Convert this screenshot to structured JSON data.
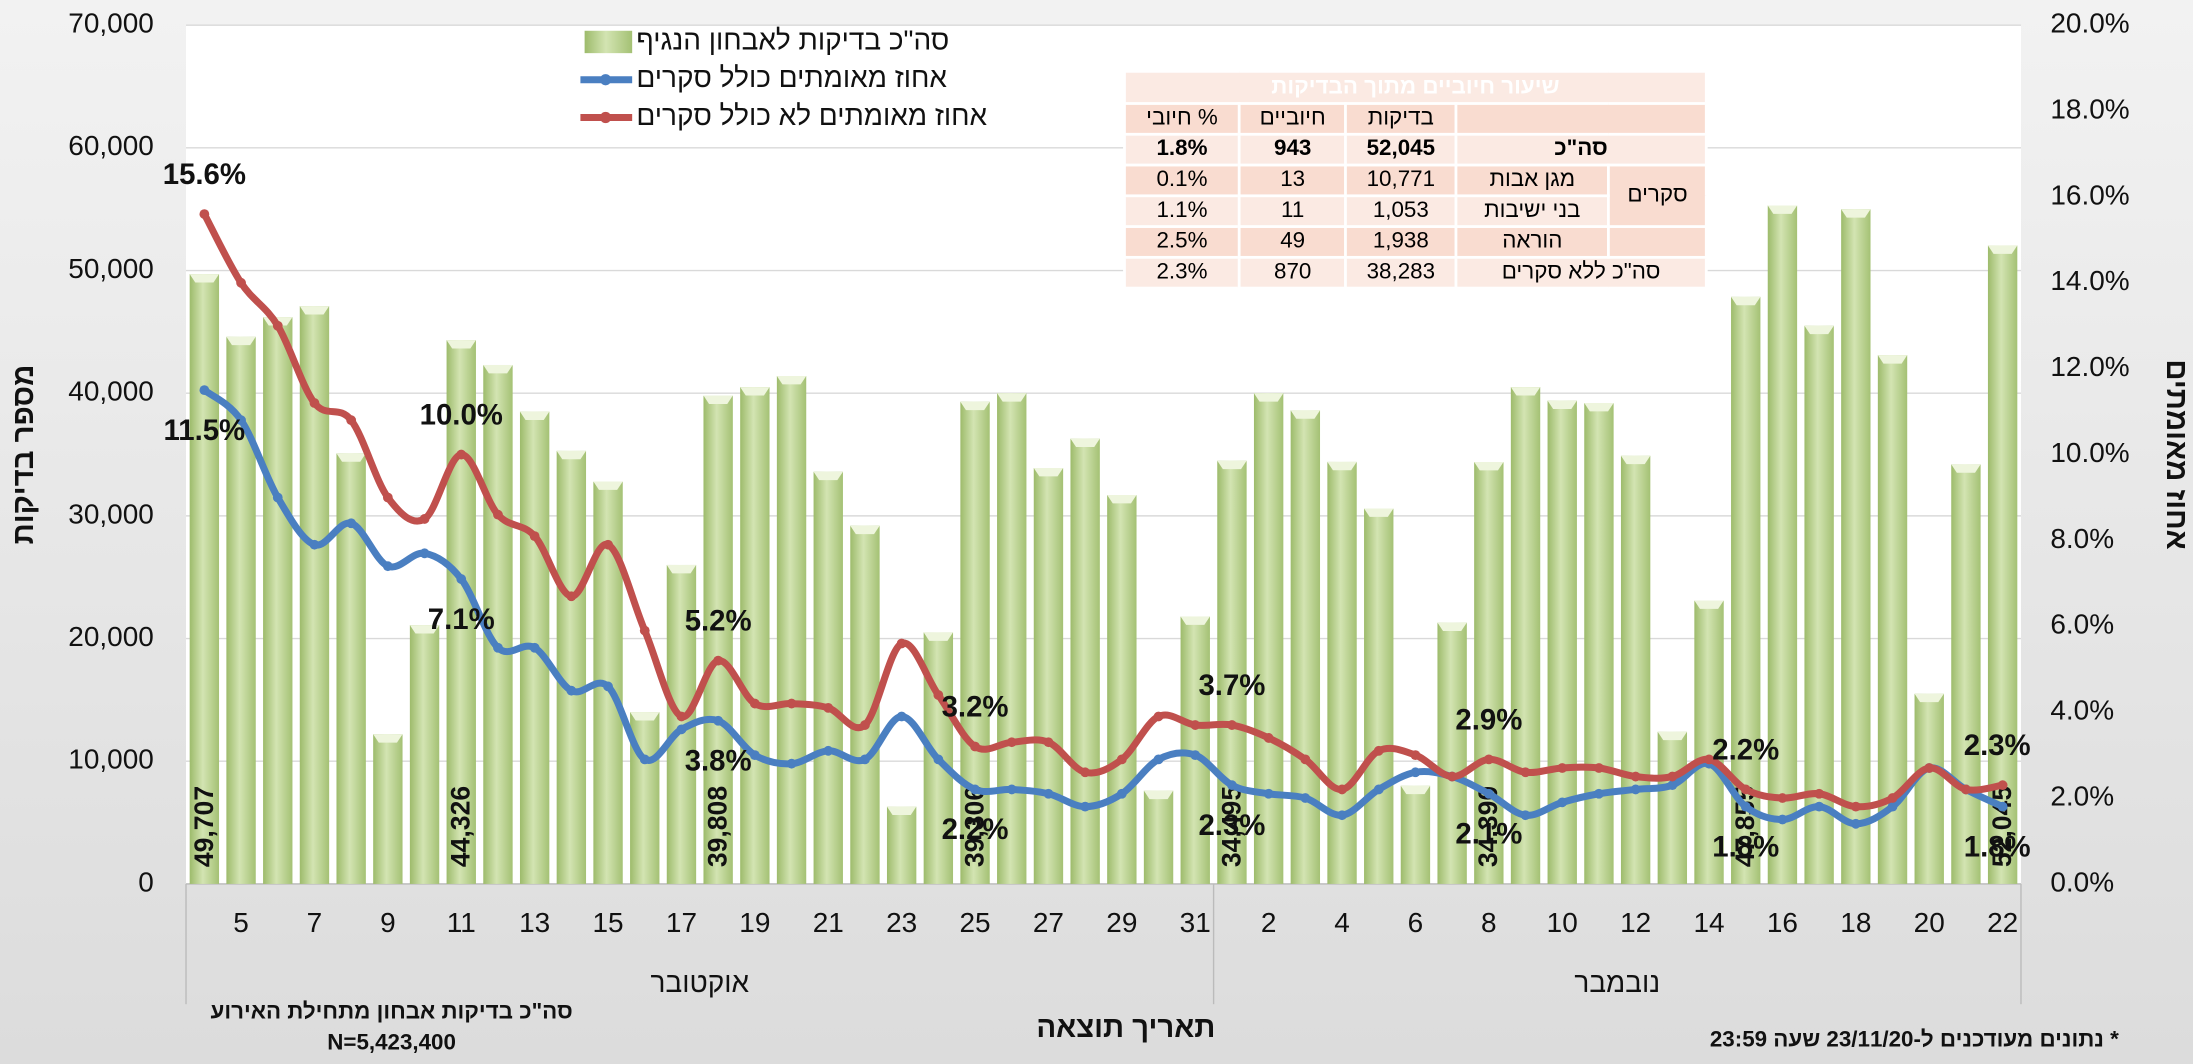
{
  "chart_data": {
    "type": "bar_line",
    "x_label": "תאריך תוצאה",
    "y_label": "מספר בדיקות",
    "y2_label": "אחוז מאומתים",
    "categories": [
      null,
      "5",
      null,
      "7",
      null,
      "9",
      null,
      "11",
      null,
      "13",
      null,
      "15",
      null,
      "17",
      null,
      "19",
      null,
      "21",
      null,
      "23",
      null,
      "25",
      null,
      "27",
      null,
      "29",
      null,
      "31",
      null,
      "2",
      null,
      "4",
      null,
      "6",
      null,
      "8",
      null,
      "10",
      null,
      "12",
      null,
      "14",
      null,
      "16",
      null,
      "18",
      null,
      "20",
      null,
      "22"
    ],
    "x_groups": [
      {
        "label": "אוקטובר",
        "count": 28
      },
      {
        "label": "נובמבר",
        "count": 22
      }
    ],
    "ylim": [
      0,
      70000
    ],
    "yticks": [
      0,
      {
        "value": 10000,
        "label": "10,000"
      },
      {
        "value": 20000,
        "label": "20,000"
      },
      {
        "value": 30000,
        "label": "30,000"
      },
      {
        "value": 40000,
        "label": "40,000"
      },
      {
        "value": 50000,
        "label": "50,000"
      },
      {
        "value": 60000,
        "label": "60,000"
      },
      {
        "value": 70000,
        "label": "70,000"
      }
    ],
    "y2lim": [
      0,
      20
    ],
    "y2ticks": [
      {
        "value": 0,
        "label": "0.0%"
      },
      {
        "value": 2,
        "label": "2.0%"
      },
      {
        "value": 4,
        "label": "4.0%"
      },
      {
        "value": 6,
        "label": "6.0%"
      },
      {
        "value": 8,
        "label": "8.0%"
      },
      {
        "value": 10,
        "label": "10.0%"
      },
      {
        "value": 12,
        "label": "12.0%"
      },
      {
        "value": 14,
        "label": "14.0%"
      },
      {
        "value": 16,
        "label": "16.0%"
      },
      {
        "value": 18,
        "label": "18.0%"
      },
      {
        "value": 20,
        "label": "20.0%"
      }
    ],
    "grid": true,
    "series": [
      {
        "name": "סה\"כ בדיקות לאבחון הנגיף",
        "type": "bar",
        "color": "#b5cf8a",
        "values": [
          49707,
          44600,
          46200,
          47100,
          35100,
          12200,
          21100,
          44326,
          42300,
          38500,
          35300,
          32800,
          14000,
          26000,
          39808,
          40500,
          41400,
          33600,
          29200,
          6300,
          20500,
          39306,
          40000,
          33900,
          36300,
          31700,
          7600,
          21800,
          34495,
          40000,
          38600,
          34400,
          30600,
          8000,
          21300,
          34390,
          40500,
          39400,
          39200,
          34900,
          12400,
          23100,
          47855,
          55300,
          45500,
          55000,
          43100,
          15500,
          34200,
          52045
        ],
        "value_labels": [
          "49,707",
          null,
          null,
          null,
          null,
          null,
          null,
          "44,326",
          null,
          null,
          null,
          null,
          null,
          null,
          "39,808",
          null,
          null,
          null,
          null,
          null,
          null,
          "39,306",
          null,
          null,
          null,
          null,
          null,
          null,
          "34,495",
          null,
          null,
          null,
          null,
          null,
          null,
          "34,390",
          null,
          null,
          null,
          null,
          null,
          null,
          "47,855",
          null,
          null,
          null,
          null,
          null,
          null,
          "52,045"
        ]
      },
      {
        "name": "אחוז מאומתים כולל סקרים",
        "type": "line",
        "axis": "y2",
        "color": "#4a7fc1",
        "values": [
          11.5,
          10.8,
          9.0,
          7.9,
          8.4,
          7.4,
          7.7,
          7.1,
          5.5,
          5.5,
          4.5,
          4.6,
          2.9,
          3.6,
          3.8,
          3.0,
          2.8,
          3.1,
          2.9,
          3.9,
          2.9,
          2.2,
          2.2,
          2.1,
          1.8,
          2.1,
          2.9,
          3.0,
          2.3,
          2.1,
          2.0,
          1.6,
          2.2,
          2.6,
          2.5,
          2.1,
          1.6,
          1.9,
          2.1,
          2.2,
          2.3,
          2.8,
          1.8,
          1.5,
          1.8,
          1.4,
          1.8,
          2.7,
          2.2,
          1.8
        ],
        "value_labels": [
          "11.5%",
          null,
          null,
          null,
          null,
          null,
          null,
          "7.1%",
          null,
          null,
          null,
          null,
          null,
          null,
          "3.8%",
          null,
          null,
          null,
          null,
          null,
          null,
          "2.2%",
          null,
          null,
          null,
          null,
          null,
          null,
          "2.3%",
          null,
          null,
          null,
          null,
          null,
          null,
          "2.1%",
          null,
          null,
          null,
          null,
          null,
          null,
          "1.8%",
          null,
          null,
          null,
          null,
          null,
          null,
          "1.8%"
        ]
      },
      {
        "name": "אחוז מאומתים לא כולל סקרים",
        "type": "line",
        "axis": "y2",
        "color": "#c0504d",
        "values": [
          15.6,
          14.0,
          13.0,
          11.2,
          10.8,
          9.0,
          8.5,
          10.0,
          8.6,
          8.1,
          6.7,
          7.9,
          5.9,
          3.9,
          5.2,
          4.2,
          4.2,
          4.1,
          3.7,
          5.6,
          4.4,
          3.2,
          3.3,
          3.3,
          2.6,
          2.9,
          3.9,
          3.7,
          3.7,
          3.4,
          2.9,
          2.2,
          3.1,
          3.0,
          2.5,
          2.9,
          2.6,
          2.7,
          2.7,
          2.5,
          2.5,
          2.9,
          2.2,
          2.0,
          2.1,
          1.8,
          2.0,
          2.7,
          2.2,
          2.3
        ],
        "value_labels": [
          "15.6%",
          null,
          null,
          null,
          null,
          null,
          null,
          "10.0%",
          null,
          null,
          null,
          null,
          null,
          null,
          "5.2%",
          null,
          null,
          null,
          null,
          null,
          null,
          "3.2%",
          null,
          null,
          null,
          null,
          null,
          null,
          "3.7%",
          null,
          null,
          null,
          null,
          null,
          null,
          "2.9%",
          null,
          null,
          null,
          null,
          null,
          null,
          "2.2%",
          null,
          null,
          null,
          null,
          null,
          null,
          "2.3%"
        ]
      }
    ],
    "notes": {
      "total_title": "סה\"כ בדיקות אבחון מתחילת האירוע",
      "total_value": "N=5,423,400",
      "footnote": "* נתונים מעודכנים ל-23/11/20 שעה 23:59"
    }
  },
  "table": {
    "title": "שיעור חיוביים מתוך הבדיקות",
    "header": [
      "בדיקות",
      "חיוביים",
      "% חיובי"
    ],
    "group": "סקרים",
    "rows": [
      {
        "label": "סה\"כ",
        "cells": [
          "52,045",
          "943",
          "1.8%"
        ]
      },
      {
        "label": "מגן אבות",
        "cells": [
          "10,771",
          "13",
          "0.1%"
        ]
      },
      {
        "label": "בני ישיבות",
        "cells": [
          "1,053",
          "11",
          "1.1%"
        ]
      },
      {
        "label": "הוראה",
        "cells": [
          "1,938",
          "49",
          "2.5%"
        ]
      },
      {
        "label": "סה\"כ ללא סקרים",
        "cells": [
          "38,283",
          "870",
          "2.3%"
        ]
      }
    ]
  }
}
